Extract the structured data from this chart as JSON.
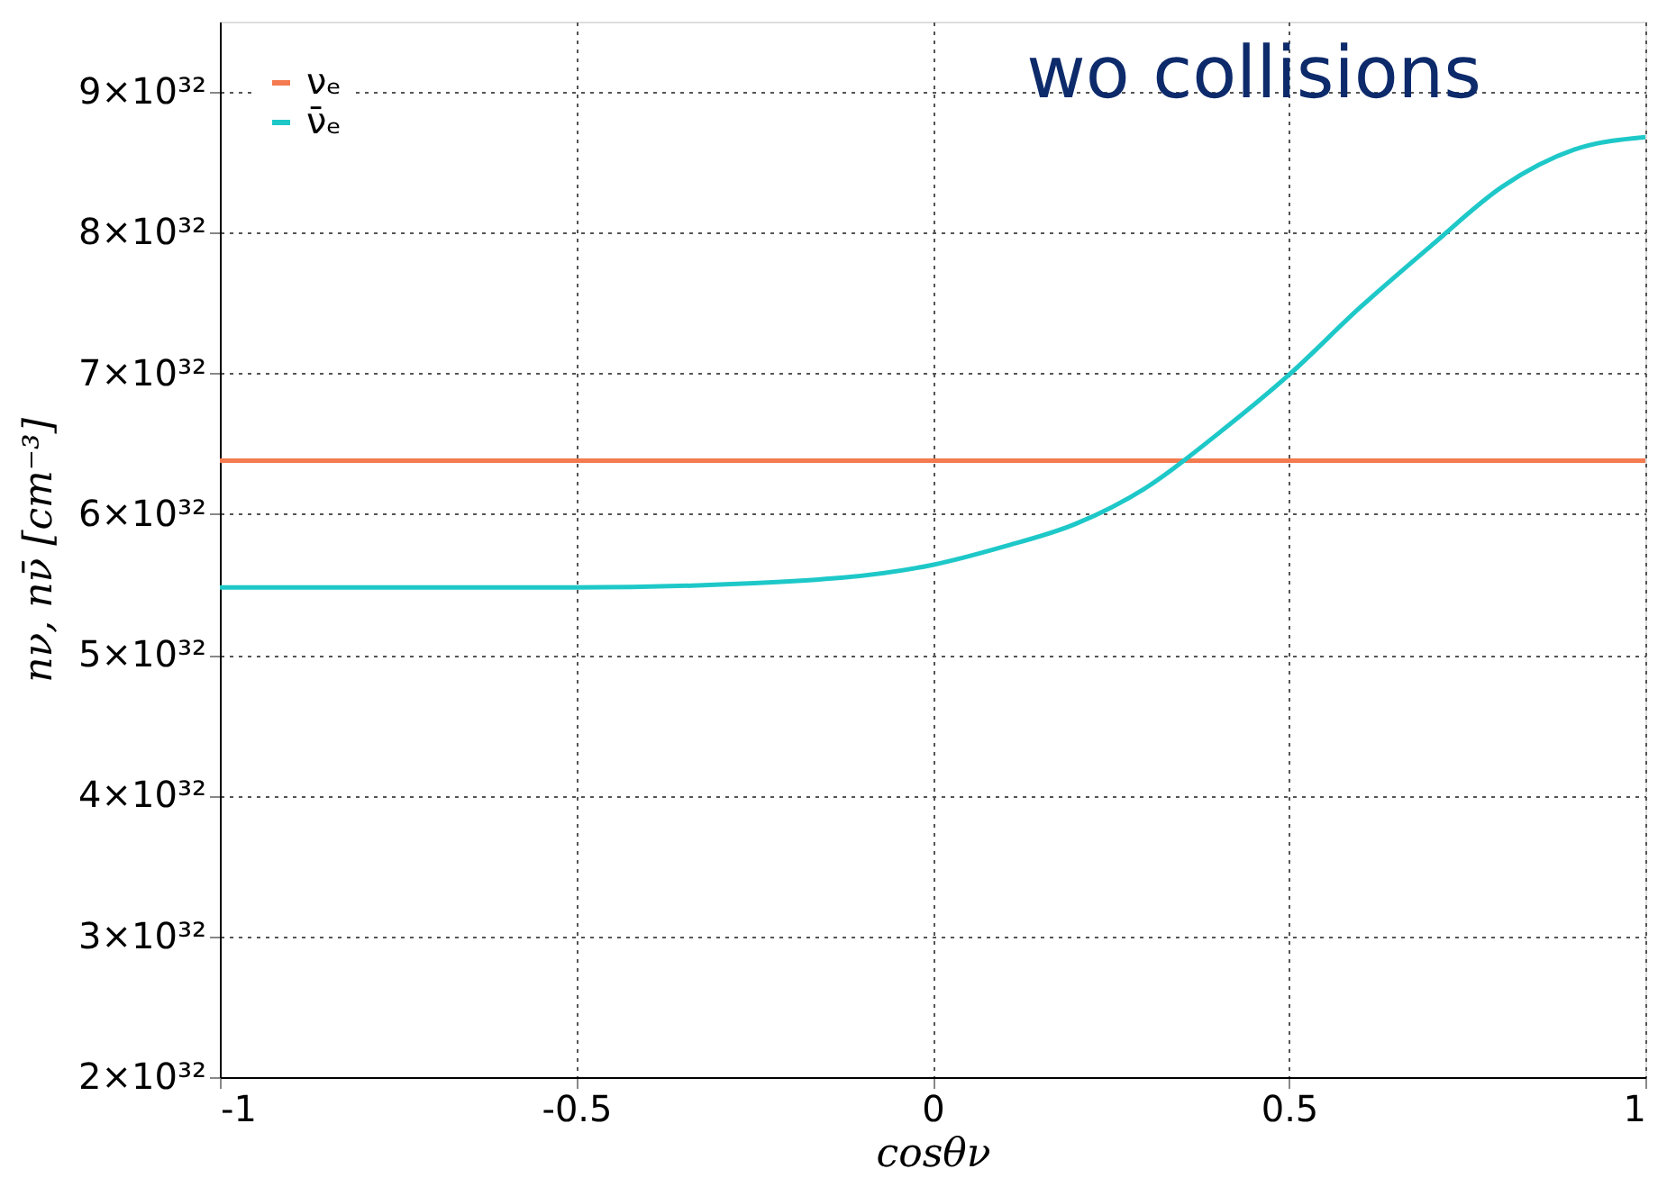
{
  "chart_data": {
    "type": "line",
    "xlabel": "cosθν",
    "ylabel": "nν, nν̄ [cm⁻³]",
    "xlim": [
      -1,
      1
    ],
    "xticks": [
      -1,
      -0.5,
      0,
      0.5,
      1
    ],
    "ylim": [
      2e+32,
      9.5e+32
    ],
    "yticks": [
      {
        "value": 2e+32,
        "label": "2×10³²"
      },
      {
        "value": 3e+32,
        "label": "3×10³²"
      },
      {
        "value": 4e+32,
        "label": "4×10³²"
      },
      {
        "value": 5e+32,
        "label": "5×10³²"
      },
      {
        "value": 6e+32,
        "label": "6×10³²"
      },
      {
        "value": 7e+32,
        "label": "7×10³²"
      },
      {
        "value": 8e+32,
        "label": "8×10³²"
      },
      {
        "value": 9e+32,
        "label": "9×10³²"
      }
    ],
    "grid": true,
    "legend": "top left",
    "marker": "none",
    "line_style": "solid",
    "annotations": [
      "wo collisions"
    ],
    "series": [
      {
        "name": "νₑ",
        "color": "#f47a50",
        "x": [
          -1,
          1
        ],
        "values": [
          6.38e+32,
          6.38e+32
        ]
      },
      {
        "name": "ν̄ₑ",
        "color": "#1ec8c8",
        "x": [
          -1,
          -0.5,
          -0.25,
          0,
          0.1,
          0.2,
          0.3,
          0.4,
          0.5,
          0.6,
          0.7,
          0.8,
          0.9,
          1
        ],
        "values": [
          5.48e+32,
          5.48e+32,
          5.51e+32,
          5.64e+32,
          5.77e+32,
          5.93e+32,
          6.19e+32,
          6.57e+32,
          6.99e+32,
          7.47e+32,
          7.91e+32,
          8.33e+32,
          8.59e+32,
          8.68e+32
        ]
      }
    ]
  }
}
